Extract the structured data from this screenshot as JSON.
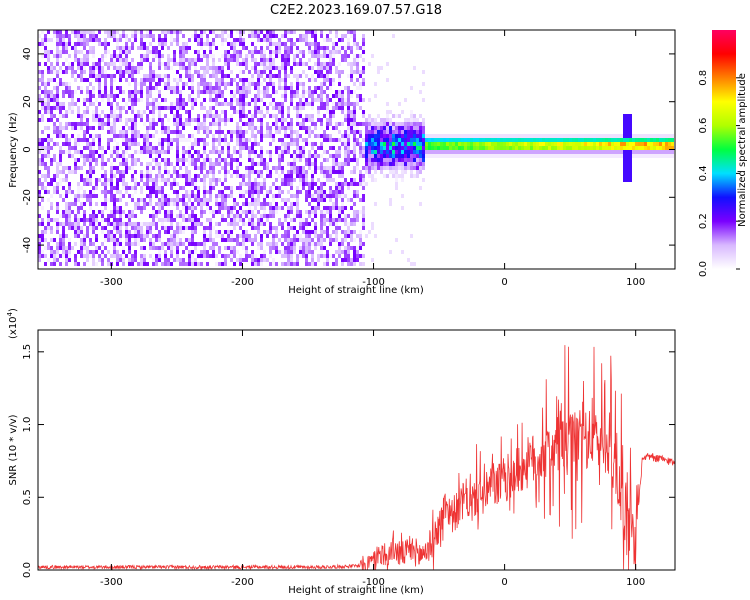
{
  "title": "C2E2.2023.169.07.57.G18",
  "chart_data": [
    {
      "type": "heatmap",
      "name": "spectrogram",
      "xlabel": "Height of straight line (km)",
      "ylabel": "Frequency (Hz)",
      "xlim": [
        -356,
        130
      ],
      "ylim": [
        -50,
        50
      ],
      "xticks": [
        -300,
        -200,
        -100,
        0,
        100
      ],
      "yticks": [
        -40,
        -20,
        0,
        20,
        40
      ],
      "colorbar": {
        "label": "Normalized spectral amplitude",
        "range": [
          0,
          1
        ],
        "ticks": [
          0.0,
          0.2,
          0.4,
          0.6,
          0.8
        ],
        "colormap": [
          "#ffffff",
          "#d8b8ff",
          "#7a00ff",
          "#1010ff",
          "#00e0ff",
          "#00ff40",
          "#b0ff00",
          "#ffff00",
          "#ff8000",
          "#ff0000",
          "#ff0060"
        ]
      },
      "features": {
        "noise_region_x": [
          -356,
          -105
        ],
        "noise_amplitude": 0.15,
        "transition_region_x": [
          -105,
          -60
        ],
        "signal_line_freq_hz": 1,
        "signal_peak_amplitude": 0.85,
        "signal_spike_x": 95
      },
      "grid": false
    },
    {
      "type": "line",
      "name": "snr",
      "xlabel": "Height of straight line (km)",
      "ylabel": "SNR (10 * v/v)",
      "y_scale_label": "(x10",
      "y_scale_exponent": "4",
      "y_scale_close": ")",
      "xlim": [
        -356,
        130
      ],
      "ylim": [
        0,
        1.65
      ],
      "xticks": [
        -300,
        -200,
        -100,
        0,
        100
      ],
      "yticks": [
        0.0,
        0.5,
        1.0,
        1.5
      ],
      "color": "#ee3333",
      "series": [
        {
          "x": [
            -356,
            -340,
            -320,
            -300,
            -280,
            -260,
            -240,
            -220,
            -200,
            -180,
            -160,
            -140,
            -120,
            -110,
            -100,
            -95,
            -90,
            -85,
            -80,
            -75,
            -70,
            -65,
            -60,
            -55,
            -50,
            -45,
            -40,
            -35,
            -30,
            -25,
            -20,
            -15,
            -10,
            -5,
            0,
            10,
            20,
            30,
            40,
            50,
            60,
            70,
            80,
            85,
            90,
            95,
            100,
            105,
            110,
            120,
            130
          ],
          "y": [
            0.02,
            0.02,
            0.02,
            0.02,
            0.02,
            0.02,
            0.02,
            0.02,
            0.02,
            0.02,
            0.02,
            0.02,
            0.025,
            0.03,
            0.06,
            0.12,
            0.08,
            0.15,
            0.1,
            0.12,
            0.14,
            0.1,
            0.13,
            0.2,
            0.3,
            0.45,
            0.38,
            0.42,
            0.5,
            0.45,
            0.55,
            0.5,
            0.6,
            0.58,
            0.62,
            0.68,
            0.75,
            0.8,
            0.85,
            0.88,
            0.9,
            0.9,
            0.85,
            0.7,
            0.5,
            0.3,
            0.2,
            0.75,
            0.78,
            0.76,
            0.74
          ]
        }
      ],
      "grid": false
    }
  ]
}
